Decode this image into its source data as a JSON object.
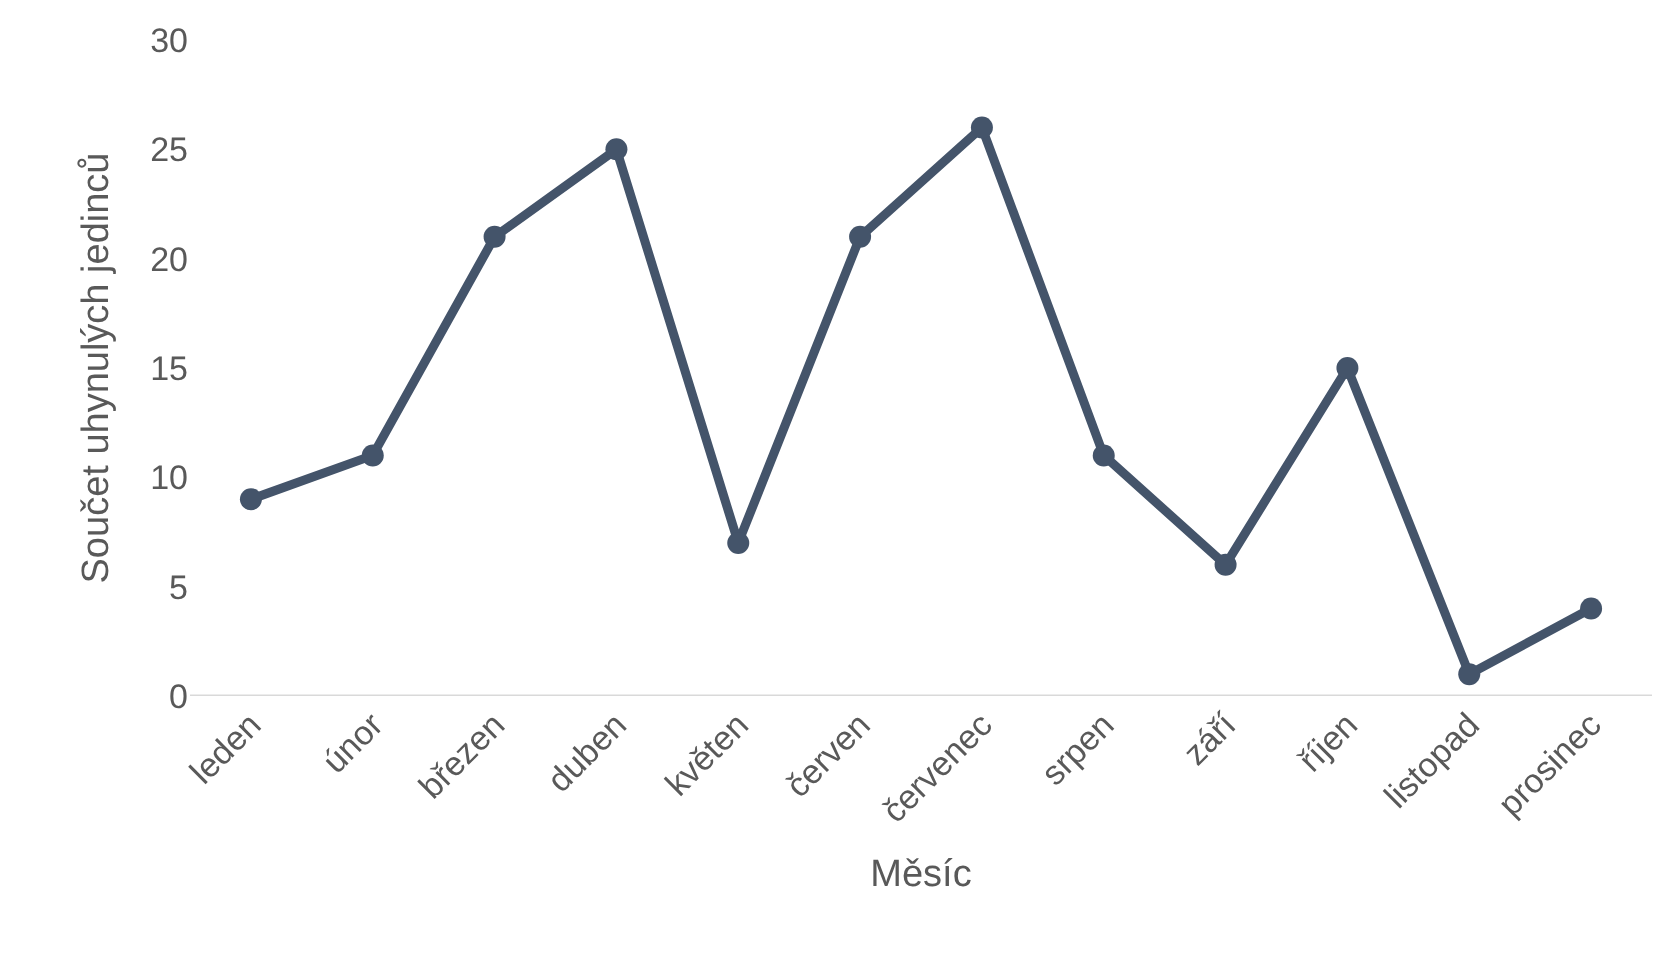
{
  "chart_data": {
    "type": "line",
    "xlabel": "Měsíc",
    "ylabel": "Součet uhynulých jedinců",
    "categories": [
      "leden",
      "únor",
      "březen",
      "duben",
      "květen",
      "červen",
      "červenec",
      "srpen",
      "září",
      "říjen",
      "listopad",
      "prosinec"
    ],
    "series": [
      {
        "color": "#44546a",
        "values": [
          9,
          11,
          21,
          25,
          7,
          21,
          26,
          11,
          6,
          15,
          1,
          4
        ]
      }
    ],
    "ylim": [
      0,
      30
    ],
    "yticks": [
      0,
      5,
      10,
      15,
      20,
      25,
      30
    ],
    "marker": "circle",
    "line_style": "solid",
    "grid": false,
    "legend": false
  }
}
